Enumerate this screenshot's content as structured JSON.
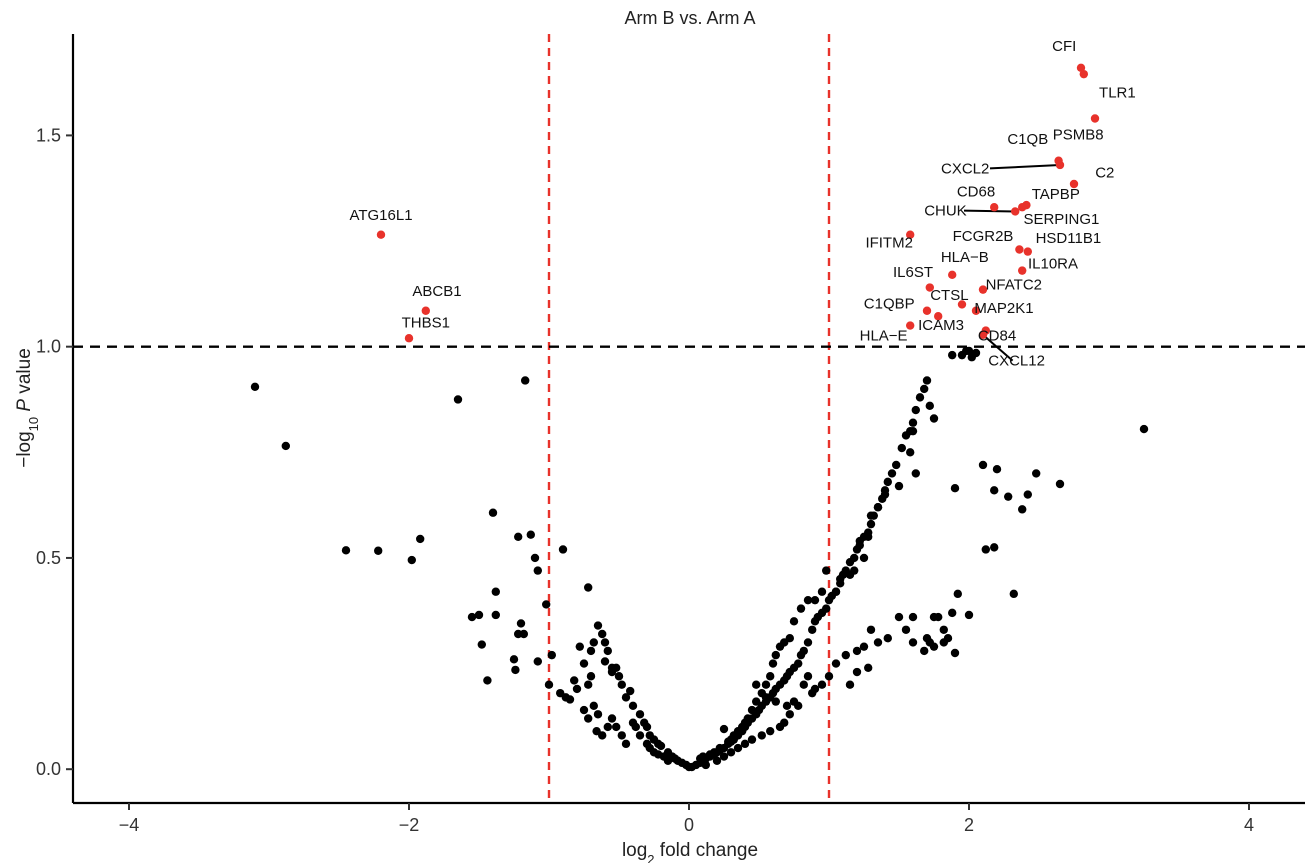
{
  "chart_data": {
    "type": "scatter",
    "title": "Arm B vs. Arm A",
    "xlabel": {
      "prefix": "log",
      "sub": "2",
      "suffix": " fold change"
    },
    "ylabel": {
      "prefix": "−log",
      "sub": "10",
      "italic": "P",
      "suffix": " value"
    },
    "xlim": [
      -4.4,
      4.4
    ],
    "ylim": [
      -0.08,
      1.74
    ],
    "x_ticks": [
      -4,
      -2,
      0,
      2,
      4
    ],
    "x_tick_labels": [
      "−4",
      "−2",
      "0",
      "2",
      "4"
    ],
    "y_ticks": [
      0.0,
      0.5,
      1.0,
      1.5
    ],
    "y_tick_labels": [
      "0.0",
      "0.5",
      "1.0",
      "1.5"
    ],
    "fc_threshold_lines": [
      -1,
      1
    ],
    "p_threshold_line": 1.0,
    "colors": {
      "significant": "#e8322b",
      "not_significant": "#000000",
      "fc_line": "#e8322b",
      "p_line": "#000000"
    },
    "grid": false,
    "significant": [
      {
        "gene": "CFI",
        "x": 2.8,
        "y": 1.66,
        "lx": 2.68,
        "ly": 1.7
      },
      {
        "gene": "TLR1",
        "x": 2.82,
        "y": 1.645,
        "lx": 3.06,
        "ly": 1.59
      },
      {
        "gene": "PSMB8",
        "x": 2.9,
        "y": 1.54,
        "lx": 2.78,
        "ly": 1.49
      },
      {
        "gene": "C1QB",
        "x": 2.64,
        "y": 1.44,
        "lx": 2.42,
        "ly": 1.48
      },
      {
        "gene": "CXCL2",
        "x": 2.65,
        "y": 1.43,
        "lx": 1.8,
        "ly": 1.41,
        "line": true
      },
      {
        "gene": "C2",
        "x": 2.75,
        "y": 1.385,
        "lx": 2.97,
        "ly": 1.4
      },
      {
        "gene": "TAPBP",
        "x": 2.41,
        "y": 1.335,
        "lx": 2.62,
        "ly": 1.35
      },
      {
        "gene": "CD68",
        "x": 2.18,
        "y": 1.33,
        "lx": 2.05,
        "ly": 1.355
      },
      {
        "gene": "CHUK",
        "x": 2.33,
        "y": 1.32,
        "lx": 1.68,
        "ly": 1.31,
        "line": true
      },
      {
        "gene": "SERPING1",
        "x": 2.38,
        "y": 1.33,
        "lx": 2.66,
        "ly": 1.29
      },
      {
        "gene": "IFITM2",
        "x": 1.58,
        "y": 1.265,
        "lx": 1.43,
        "ly": 1.235
      },
      {
        "gene": "FCGR2B",
        "x": 2.36,
        "y": 1.23,
        "lx": 2.1,
        "ly": 1.25
      },
      {
        "gene": "HSD11B1",
        "x": 2.42,
        "y": 1.225,
        "lx": 2.71,
        "ly": 1.245
      },
      {
        "gene": "HLA−B",
        "x": 1.88,
        "y": 1.17,
        "lx": 1.97,
        "ly": 1.2
      },
      {
        "gene": "IL10RA",
        "x": 2.38,
        "y": 1.18,
        "lx": 2.6,
        "ly": 1.185
      },
      {
        "gene": "IL6ST",
        "x": 1.72,
        "y": 1.14,
        "lx": 1.6,
        "ly": 1.165
      },
      {
        "gene": "NFATC2",
        "x": 2.1,
        "y": 1.135,
        "lx": 2.32,
        "ly": 1.135
      },
      {
        "gene": "CTSL",
        "x": 1.95,
        "y": 1.1,
        "lx": 1.86,
        "ly": 1.11
      },
      {
        "gene": "C1QBP",
        "x": 1.7,
        "y": 1.085,
        "lx": 1.43,
        "ly": 1.09
      },
      {
        "gene": "MAP2K1",
        "x": 2.05,
        "y": 1.085,
        "lx": 2.25,
        "ly": 1.08
      },
      {
        "gene": "ICAM3",
        "x": 1.78,
        "y": 1.072,
        "lx": 1.8,
        "ly": 1.04
      },
      {
        "gene": "HLA−E",
        "x": 1.58,
        "y": 1.05,
        "lx": 1.39,
        "ly": 1.015
      },
      {
        "gene": "CD84",
        "x": 2.12,
        "y": 1.038,
        "lx": 2.2,
        "ly": 1.015
      },
      {
        "gene": "CXCL12",
        "x": 2.1,
        "y": 1.028,
        "lx": 2.34,
        "ly": 0.955,
        "line": true
      },
      {
        "gene": "ATG16L1",
        "x": -2.2,
        "y": 1.265,
        "lx": -2.2,
        "ly": 1.3
      },
      {
        "gene": "ABCB1",
        "x": -1.88,
        "y": 1.085,
        "lx": -1.8,
        "ly": 1.12
      },
      {
        "gene": "THBS1",
        "x": -2.0,
        "y": 1.02,
        "lx": -1.88,
        "ly": 1.045
      }
    ],
    "nonsignificant": [
      [
        -3.1,
        0.905
      ],
      [
        -2.88,
        0.765
      ],
      [
        -2.45,
        0.518
      ],
      [
        -2.22,
        0.517
      ],
      [
        -1.92,
        0.545
      ],
      [
        -1.98,
        0.495
      ],
      [
        -1.65,
        0.875
      ],
      [
        -1.4,
        0.607
      ],
      [
        -1.38,
        0.42
      ],
      [
        -1.55,
        0.36
      ],
      [
        -1.5,
        0.365
      ],
      [
        -1.48,
        0.295
      ],
      [
        -1.38,
        0.365
      ],
      [
        -1.2,
        0.345
      ],
      [
        -1.13,
        0.555
      ],
      [
        -1.17,
        0.92
      ],
      [
        -1.1,
        0.5
      ],
      [
        -1.08,
        0.47
      ],
      [
        -1.22,
        0.55
      ],
      [
        -1.02,
        0.39
      ],
      [
        -0.98,
        0.27
      ],
      [
        -1.0,
        0.2
      ],
      [
        -0.9,
        0.52
      ],
      [
        -0.72,
        0.43
      ],
      [
        -1.44,
        0.21
      ],
      [
        -1.25,
        0.26
      ],
      [
        -1.22,
        0.32
      ],
      [
        -1.18,
        0.32
      ],
      [
        -1.24,
        0.235
      ],
      [
        -1.08,
        0.255
      ],
      [
        -0.92,
        0.18
      ],
      [
        -0.85,
        0.165
      ],
      [
        -0.82,
        0.21
      ],
      [
        -0.75,
        0.25
      ],
      [
        -0.78,
        0.29
      ],
      [
        -0.68,
        0.3
      ],
      [
        -0.65,
        0.34
      ],
      [
        -0.62,
        0.32
      ],
      [
        -0.6,
        0.3
      ],
      [
        -0.58,
        0.28
      ],
      [
        -0.55,
        0.24
      ],
      [
        -0.52,
        0.24
      ],
      [
        -0.5,
        0.22
      ],
      [
        -0.48,
        0.2
      ],
      [
        -0.45,
        0.17
      ],
      [
        -0.4,
        0.15
      ],
      [
        -0.35,
        0.13
      ],
      [
        -0.32,
        0.11
      ],
      [
        -0.3,
        0.1
      ],
      [
        -0.28,
        0.08
      ],
      [
        -0.25,
        0.07
      ],
      [
        -0.22,
        0.06
      ],
      [
        -0.2,
        0.055
      ],
      [
        -0.15,
        0.04
      ],
      [
        -0.12,
        0.03
      ],
      [
        -0.1,
        0.025
      ],
      [
        -0.08,
        0.02
      ],
      [
        -0.05,
        0.015
      ],
      [
        -0.02,
        0.01
      ],
      [
        0.0,
        0.005
      ],
      [
        -0.7,
        0.28
      ],
      [
        -0.6,
        0.255
      ],
      [
        -0.55,
        0.23
      ],
      [
        -0.7,
        0.22
      ],
      [
        -0.72,
        0.2
      ],
      [
        -0.68,
        0.15
      ],
      [
        -0.65,
        0.13
      ],
      [
        -0.72,
        0.12
      ],
      [
        -0.75,
        0.14
      ],
      [
        -0.8,
        0.19
      ],
      [
        -0.88,
        0.17
      ],
      [
        -0.62,
        0.08
      ],
      [
        -0.58,
        0.1
      ],
      [
        -0.55,
        0.12
      ],
      [
        -0.52,
        0.1
      ],
      [
        -0.48,
        0.08
      ],
      [
        -0.45,
        0.06
      ],
      [
        -0.4,
        0.11
      ],
      [
        -0.35,
        0.08
      ],
      [
        -0.3,
        0.06
      ],
      [
        -0.28,
        0.05
      ],
      [
        -0.25,
        0.04
      ],
      [
        -0.18,
        0.03
      ],
      [
        -0.15,
        0.02
      ],
      [
        -0.42,
        0.185
      ],
      [
        -0.38,
        0.1
      ],
      [
        -0.22,
        0.035
      ],
      [
        -0.66,
        0.09
      ],
      [
        0.02,
        0.005
      ],
      [
        0.05,
        0.01
      ],
      [
        0.08,
        0.015
      ],
      [
        0.1,
        0.02
      ],
      [
        0.12,
        0.025
      ],
      [
        0.15,
        0.03
      ],
      [
        0.18,
        0.035
      ],
      [
        0.2,
        0.04
      ],
      [
        0.22,
        0.045
      ],
      [
        0.25,
        0.05
      ],
      [
        0.28,
        0.06
      ],
      [
        0.3,
        0.065
      ],
      [
        0.32,
        0.07
      ],
      [
        0.35,
        0.08
      ],
      [
        0.38,
        0.09
      ],
      [
        0.4,
        0.1
      ],
      [
        0.42,
        0.11
      ],
      [
        0.45,
        0.12
      ],
      [
        0.48,
        0.13
      ],
      [
        0.5,
        0.14
      ],
      [
        0.52,
        0.15
      ],
      [
        0.55,
        0.16
      ],
      [
        0.58,
        0.17
      ],
      [
        0.6,
        0.18
      ],
      [
        0.62,
        0.19
      ],
      [
        0.65,
        0.2
      ],
      [
        0.68,
        0.21
      ],
      [
        0.7,
        0.22
      ],
      [
        0.72,
        0.23
      ],
      [
        0.75,
        0.24
      ],
      [
        0.78,
        0.25
      ],
      [
        0.8,
        0.27
      ],
      [
        0.82,
        0.28
      ],
      [
        0.85,
        0.3
      ],
      [
        0.88,
        0.33
      ],
      [
        0.9,
        0.35
      ],
      [
        0.92,
        0.36
      ],
      [
        0.95,
        0.37
      ],
      [
        0.98,
        0.38
      ],
      [
        1.0,
        0.4
      ],
      [
        1.02,
        0.41
      ],
      [
        1.05,
        0.42
      ],
      [
        1.08,
        0.44
      ],
      [
        1.1,
        0.46
      ],
      [
        1.12,
        0.47
      ],
      [
        1.15,
        0.49
      ],
      [
        1.18,
        0.5
      ],
      [
        1.2,
        0.52
      ],
      [
        1.22,
        0.53
      ],
      [
        1.25,
        0.55
      ],
      [
        1.28,
        0.56
      ],
      [
        1.3,
        0.58
      ],
      [
        1.32,
        0.6
      ],
      [
        1.35,
        0.62
      ],
      [
        1.38,
        0.64
      ],
      [
        1.4,
        0.66
      ],
      [
        1.42,
        0.68
      ],
      [
        1.45,
        0.7
      ],
      [
        1.48,
        0.72
      ],
      [
        1.52,
        0.76
      ],
      [
        1.55,
        0.79
      ],
      [
        1.58,
        0.8
      ],
      [
        1.6,
        0.82
      ],
      [
        1.62,
        0.85
      ],
      [
        1.65,
        0.88
      ],
      [
        1.68,
        0.9
      ],
      [
        1.7,
        0.92
      ],
      [
        1.72,
        0.86
      ],
      [
        1.75,
        0.83
      ],
      [
        1.6,
        0.8
      ],
      [
        1.58,
        0.75
      ],
      [
        1.62,
        0.7
      ],
      [
        1.5,
        0.67
      ],
      [
        1.4,
        0.65
      ],
      [
        1.35,
        0.62
      ],
      [
        1.3,
        0.6
      ],
      [
        1.28,
        0.55
      ],
      [
        1.22,
        0.54
      ],
      [
        1.25,
        0.5
      ],
      [
        1.18,
        0.47
      ],
      [
        1.15,
        0.46
      ],
      [
        1.08,
        0.45
      ],
      [
        1.05,
        0.42
      ],
      [
        0.98,
        0.47
      ],
      [
        0.95,
        0.42
      ],
      [
        0.9,
        0.4
      ],
      [
        0.85,
        0.4
      ],
      [
        0.8,
        0.38
      ],
      [
        0.75,
        0.35
      ],
      [
        0.72,
        0.31
      ],
      [
        0.68,
        0.3
      ],
      [
        0.65,
        0.29
      ],
      [
        0.62,
        0.27
      ],
      [
        0.6,
        0.25
      ],
      [
        0.58,
        0.22
      ],
      [
        0.55,
        0.2
      ],
      [
        0.55,
        0.17
      ],
      [
        0.52,
        0.18
      ],
      [
        0.48,
        0.16
      ],
      [
        0.45,
        0.14
      ],
      [
        0.42,
        0.12
      ],
      [
        0.4,
        0.11
      ],
      [
        0.38,
        0.1
      ],
      [
        0.35,
        0.09
      ],
      [
        0.32,
        0.08
      ],
      [
        0.3,
        0.07
      ],
      [
        0.28,
        0.065
      ],
      [
        0.22,
        0.05
      ],
      [
        0.18,
        0.04
      ],
      [
        0.15,
        0.035
      ],
      [
        0.1,
        0.03
      ],
      [
        0.08,
        0.025
      ],
      [
        0.25,
        0.095
      ],
      [
        0.48,
        0.2
      ],
      [
        0.62,
        0.16
      ],
      [
        0.7,
        0.15
      ],
      [
        0.75,
        0.16
      ],
      [
        0.78,
        0.15
      ],
      [
        0.82,
        0.2
      ],
      [
        0.85,
        0.22
      ],
      [
        0.72,
        0.13
      ],
      [
        0.68,
        0.11
      ],
      [
        0.65,
        0.1
      ],
      [
        0.58,
        0.09
      ],
      [
        0.52,
        0.08
      ],
      [
        0.45,
        0.07
      ],
      [
        0.4,
        0.06
      ],
      [
        0.35,
        0.05
      ],
      [
        0.3,
        0.04
      ],
      [
        0.25,
        0.03
      ],
      [
        0.2,
        0.02
      ],
      [
        0.12,
        0.01
      ],
      [
        0.9,
        0.19
      ],
      [
        0.95,
        0.2
      ],
      [
        1.0,
        0.22
      ],
      [
        1.05,
        0.25
      ],
      [
        1.12,
        0.27
      ],
      [
        1.2,
        0.28
      ],
      [
        1.25,
        0.29
      ],
      [
        1.3,
        0.33
      ],
      [
        1.35,
        0.3
      ],
      [
        1.42,
        0.31
      ],
      [
        1.5,
        0.36
      ],
      [
        1.55,
        0.33
      ],
      [
        1.6,
        0.3
      ],
      [
        1.68,
        0.28
      ],
      [
        1.75,
        0.36
      ],
      [
        1.82,
        0.33
      ],
      [
        1.78,
        0.36
      ],
      [
        1.7,
        0.31
      ],
      [
        0.88,
        0.18
      ],
      [
        1.28,
        0.24
      ],
      [
        1.15,
        0.2
      ],
      [
        1.2,
        0.23
      ],
      [
        2.0,
        0.99
      ],
      [
        2.05,
        0.985
      ],
      [
        1.95,
        0.98
      ],
      [
        2.02,
        0.975
      ],
      [
        1.98,
        0.99
      ],
      [
        1.88,
        0.98
      ],
      [
        1.92,
        0.415
      ],
      [
        1.9,
        0.665
      ],
      [
        2.1,
        0.72
      ],
      [
        2.12,
        0.52
      ],
      [
        2.18,
        0.525
      ],
      [
        2.28,
        0.645
      ],
      [
        2.32,
        0.415
      ],
      [
        2.38,
        0.615
      ],
      [
        2.42,
        0.65
      ],
      [
        2.48,
        0.7
      ],
      [
        2.65,
        0.675
      ],
      [
        3.25,
        0.805
      ],
      [
        1.88,
        0.37
      ],
      [
        1.85,
        0.31
      ],
      [
        2.0,
        0.365
      ],
      [
        2.2,
        0.71
      ],
      [
        2.18,
        0.66
      ],
      [
        1.72,
        0.3
      ],
      [
        1.9,
        0.275
      ],
      [
        1.82,
        0.3
      ],
      [
        1.6,
        0.36
      ],
      [
        1.75,
        0.29
      ]
    ]
  }
}
